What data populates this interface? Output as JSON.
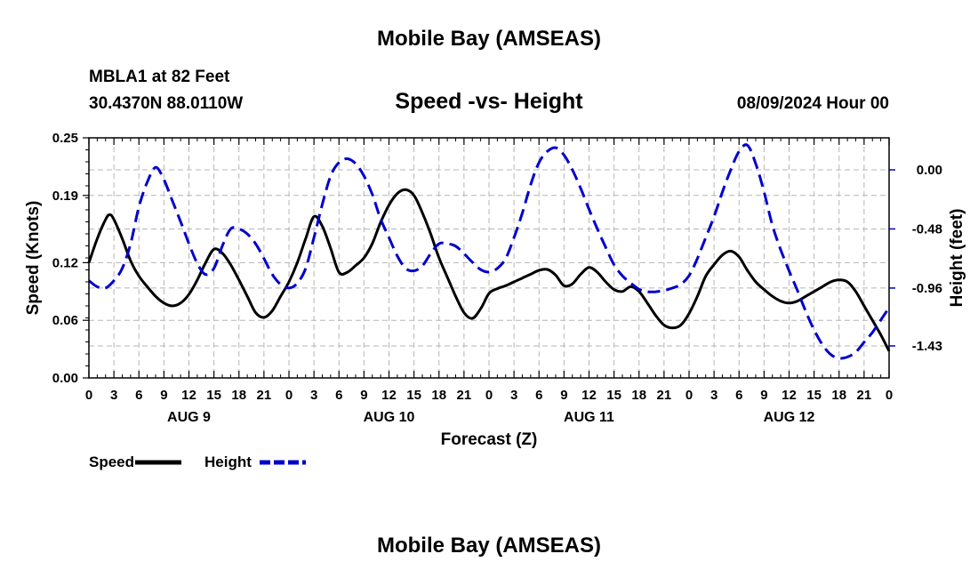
{
  "header": {
    "title": "Mobile Bay (AMSEAS)",
    "station": "MBLA1 at 82 Feet",
    "coords": "30.4370N  88.0110W",
    "subtitle": "Speed -vs- Height",
    "datetime": "08/09/2024 Hour 00"
  },
  "footer": {
    "title": "Mobile Bay (AMSEAS)"
  },
  "chart_data": {
    "type": "line",
    "xlabel": "Forecast (Z)",
    "ylabel_left": "Speed (Knots)",
    "ylabel_right": "Height (feet)",
    "x_range": [
      0,
      96
    ],
    "x_ticks": [
      0,
      3,
      6,
      9,
      12,
      15,
      18,
      21,
      24,
      27,
      30,
      33,
      36,
      39,
      42,
      45,
      48,
      51,
      54,
      57,
      60,
      63,
      66,
      69,
      72,
      75,
      78,
      81,
      84,
      87,
      90,
      93,
      96
    ],
    "x_tick_labels": [
      "0",
      "3",
      "6",
      "9",
      "12",
      "15",
      "18",
      "21",
      "0",
      "3",
      "6",
      "9",
      "12",
      "15",
      "18",
      "21",
      "0",
      "3",
      "6",
      "9",
      "12",
      "15",
      "18",
      "21",
      "0",
      "3",
      "6",
      "9",
      "12",
      "15",
      "18",
      "21",
      "0"
    ],
    "day_labels": [
      {
        "label": "AUG 9",
        "x": 12
      },
      {
        "label": "AUG 10",
        "x": 36
      },
      {
        "label": "AUG 11",
        "x": 60
      },
      {
        "label": "AUG 12",
        "x": 84
      }
    ],
    "y_left": {
      "range": [
        0,
        0.25
      ],
      "ticks": [
        0,
        0.06,
        0.12,
        0.19,
        0.25
      ],
      "tick_labels": [
        "0.00",
        "0.06",
        "0.12",
        "0.19",
        "0.25"
      ]
    },
    "y_right": {
      "range": [
        -1.69,
        0.26
      ],
      "ticks": [
        0.0,
        -0.48,
        -0.96,
        -1.43
      ],
      "tick_labels": [
        "0.00",
        "-0.48",
        "-0.96",
        "-1.43"
      ]
    },
    "grid": true,
    "series": [
      {
        "name": "Speed",
        "color": "#000000",
        "axis": "left",
        "dash": "solid",
        "x": [
          0,
          1,
          2,
          2.5,
          3,
          4,
          5,
          6,
          7,
          8,
          9,
          10,
          11,
          12,
          13,
          14,
          15,
          16,
          17,
          18,
          19,
          20,
          21,
          22,
          23,
          24,
          25,
          26,
          27,
          28,
          29,
          30,
          31,
          32,
          33,
          34,
          35,
          36,
          37,
          38,
          39,
          40,
          41,
          42,
          43,
          44,
          45,
          46,
          47,
          48,
          49,
          50,
          51,
          52,
          53,
          54,
          55,
          56,
          57,
          58,
          59,
          60,
          61,
          62,
          63,
          64,
          65,
          66,
          67,
          68,
          69,
          70,
          71,
          72,
          73,
          74,
          75,
          76,
          77,
          78,
          79,
          80,
          81,
          82,
          83,
          84,
          85,
          86,
          87,
          88,
          89,
          90,
          91,
          92,
          93,
          94,
          95,
          96
        ],
        "values": [
          0.12,
          0.145,
          0.165,
          0.17,
          0.165,
          0.145,
          0.122,
          0.106,
          0.095,
          0.085,
          0.078,
          0.075,
          0.078,
          0.087,
          0.102,
          0.12,
          0.134,
          0.13,
          0.118,
          0.102,
          0.085,
          0.068,
          0.063,
          0.07,
          0.085,
          0.1,
          0.12,
          0.145,
          0.168,
          0.158,
          0.135,
          0.11,
          0.11,
          0.117,
          0.125,
          0.14,
          0.162,
          0.18,
          0.192,
          0.196,
          0.19,
          0.172,
          0.15,
          0.125,
          0.105,
          0.085,
          0.068,
          0.062,
          0.072,
          0.088,
          0.093,
          0.096,
          0.1,
          0.104,
          0.108,
          0.112,
          0.113,
          0.107,
          0.096,
          0.098,
          0.108,
          0.115,
          0.11,
          0.1,
          0.092,
          0.09,
          0.095,
          0.09,
          0.078,
          0.065,
          0.055,
          0.052,
          0.055,
          0.067,
          0.085,
          0.106,
          0.118,
          0.128,
          0.132,
          0.126,
          0.112,
          0.1,
          0.092,
          0.085,
          0.08,
          0.078,
          0.08,
          0.085,
          0.09,
          0.095,
          0.1,
          0.102,
          0.1,
          0.09,
          0.075,
          0.06,
          0.045,
          0.028
        ]
      },
      {
        "name": "Height",
        "color": "#0000cc",
        "axis": "right",
        "dash": "dashed",
        "x": [
          0,
          1,
          2,
          3,
          4,
          5,
          6,
          7,
          8,
          9,
          10,
          11,
          12,
          13,
          14,
          15,
          16,
          17,
          18,
          19,
          20,
          21,
          22,
          23,
          24,
          25,
          26,
          27,
          28,
          29,
          30,
          31,
          32,
          33,
          34,
          35,
          36,
          37,
          38,
          39,
          40,
          41,
          42,
          43,
          44,
          45,
          46,
          47,
          48,
          49,
          50,
          51,
          52,
          53,
          54,
          55,
          56,
          57,
          58,
          59,
          60,
          61,
          62,
          63,
          64,
          65,
          66,
          67,
          68,
          69,
          70,
          71,
          72,
          73,
          74,
          75,
          76,
          77,
          78,
          79,
          80,
          81,
          82,
          83,
          84,
          85,
          86,
          87,
          88,
          89,
          90,
          91,
          92,
          93,
          94,
          95,
          96
        ],
        "values": [
          -0.9,
          -0.95,
          -0.96,
          -0.9,
          -0.8,
          -0.6,
          -0.3,
          -0.1,
          0.02,
          -0.08,
          -0.25,
          -0.42,
          -0.6,
          -0.76,
          -0.85,
          -0.8,
          -0.62,
          -0.48,
          -0.48,
          -0.52,
          -0.6,
          -0.72,
          -0.85,
          -0.93,
          -0.96,
          -0.92,
          -0.8,
          -0.55,
          -0.28,
          -0.05,
          0.06,
          0.09,
          0.05,
          -0.05,
          -0.2,
          -0.4,
          -0.55,
          -0.7,
          -0.8,
          -0.82,
          -0.78,
          -0.68,
          -0.6,
          -0.6,
          -0.62,
          -0.68,
          -0.75,
          -0.81,
          -0.83,
          -0.8,
          -0.72,
          -0.55,
          -0.35,
          -0.12,
          0.06,
          0.15,
          0.18,
          0.12,
          0.0,
          -0.15,
          -0.32,
          -0.48,
          -0.63,
          -0.77,
          -0.86,
          -0.92,
          -0.97,
          -0.99,
          -0.99,
          -0.98,
          -0.96,
          -0.93,
          -0.86,
          -0.72,
          -0.55,
          -0.38,
          -0.18,
          0.0,
          0.15,
          0.2,
          0.05,
          -0.18,
          -0.45,
          -0.65,
          -0.82,
          -0.98,
          -1.15,
          -1.3,
          -1.42,
          -1.5,
          -1.53,
          -1.52,
          -1.48,
          -1.4,
          -1.32,
          -1.22,
          -1.12
        ]
      }
    ],
    "legend": [
      {
        "label": "Speed",
        "color": "#000000",
        "dash": "solid"
      },
      {
        "label": "Height",
        "color": "#0000cc",
        "dash": "dashed"
      }
    ],
    "legend_position": "bottom-left"
  }
}
